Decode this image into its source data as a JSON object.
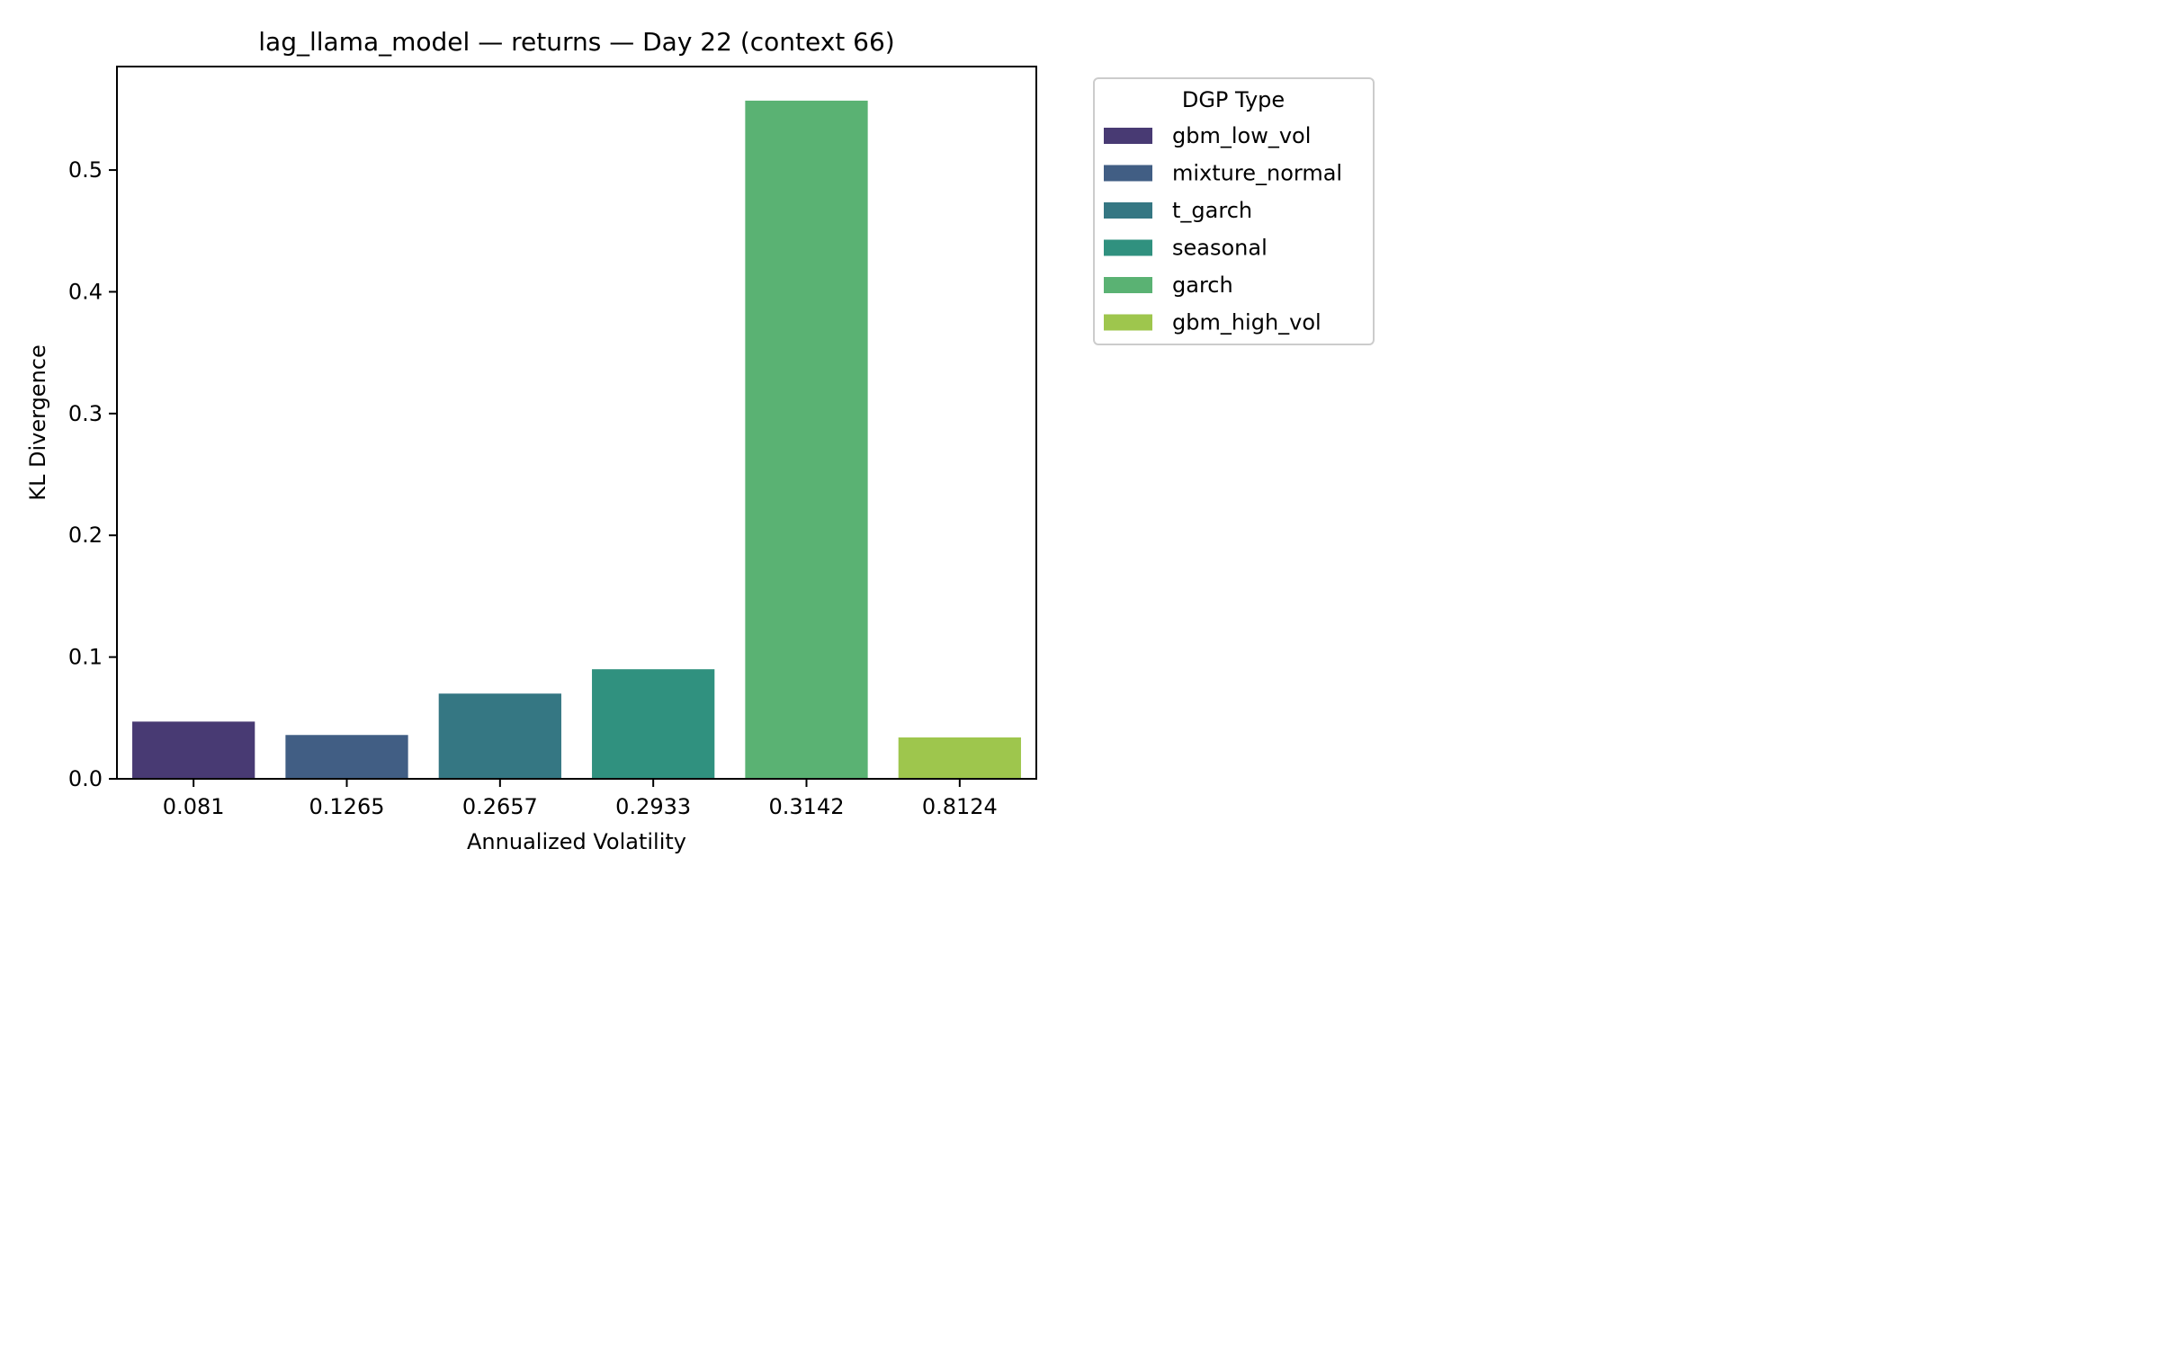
{
  "chart_data": {
    "type": "bar",
    "title": "lag_llama_model — returns — Day 22 (context 66)",
    "xlabel": "Annualized Volatility",
    "ylabel": "KL Divergence",
    "categories": [
      "0.081",
      "0.1265",
      "0.2657",
      "0.2933",
      "0.3142",
      "0.8124"
    ],
    "values": [
      0.047,
      0.036,
      0.07,
      0.09,
      0.557,
      0.034
    ],
    "series_labels": [
      "gbm_low_vol",
      "mixture_normal",
      "t_garch",
      "seasonal",
      "garch",
      "gbm_high_vol"
    ],
    "colors": [
      "#483a73",
      "#415e84",
      "#357783",
      "#30917f",
      "#5ab273",
      "#9ec64d"
    ],
    "ylim": [
      0,
      0.585
    ],
    "yticks": [
      0.0,
      0.1,
      0.2,
      0.3,
      0.4,
      0.5
    ],
    "ytick_labels": [
      "0.0",
      "0.1",
      "0.2",
      "0.3",
      "0.4",
      "0.5"
    ],
    "grid": false,
    "legend": {
      "title": "DGP Type",
      "placement": "outside-top-right",
      "entries": [
        "gbm_low_vol",
        "mixture_normal",
        "t_garch",
        "seasonal",
        "garch",
        "gbm_high_vol"
      ]
    }
  }
}
